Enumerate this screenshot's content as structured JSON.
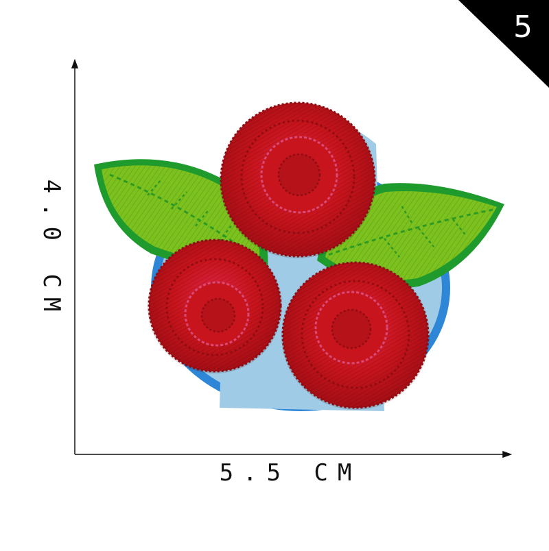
{
  "product": {
    "variant_number": "5",
    "height_label": "4.0 CM",
    "width_label": "5.5 CM",
    "subject": "embroidered-rose-patch"
  },
  "colors": {
    "rose": "#c8141c",
    "rose_dark": "#8e0c12",
    "rose_pink": "#d84a78",
    "leaf": "#7cc21f",
    "leaf_border": "#1f9b2e",
    "felt": "#9fcbe6",
    "felt_border": "#2e86d6",
    "badge": "#000000"
  }
}
